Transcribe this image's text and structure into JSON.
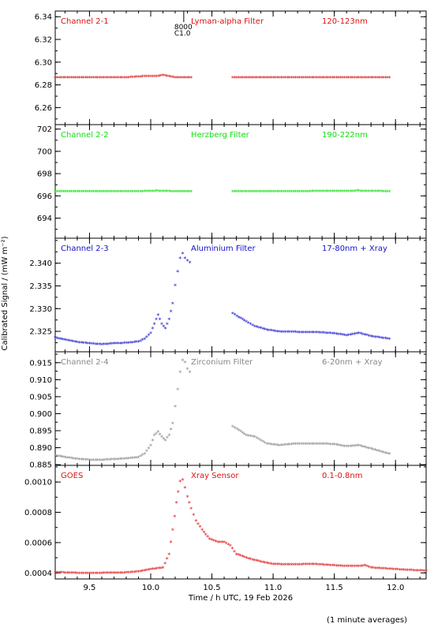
{
  "chart_data": [
    {
      "type": "scatter",
      "channel_label": "Channel 2-1",
      "filter_label": "Lyman-alpha Filter",
      "band_label": "120-123nm",
      "color": "#dd1111",
      "ylim": [
        6.245,
        6.345
      ],
      "yticks": [
        6.26,
        6.28,
        6.3,
        6.32,
        6.34
      ],
      "ytick_labels": [
        "6.26",
        "6.28",
        "6.30",
        "6.32",
        "6.34"
      ],
      "marker_annotation": {
        "x": 10.27,
        "lines": [
          "8000",
          "C1.0"
        ]
      },
      "series": [
        {
          "segments": [
            [
              [
                9.22,
                6.286
              ],
              [
                9.5,
                6.286
              ],
              [
                9.8,
                6.286
              ],
              [
                9.95,
                6.287
              ],
              [
                10.0,
                6.287
              ],
              [
                10.05,
                6.287
              ],
              [
                10.1,
                6.288
              ],
              [
                10.15,
                6.287
              ],
              [
                10.2,
                6.286
              ],
              [
                10.33,
                6.286
              ]
            ],
            [
              [
                10.67,
                6.286
              ],
              [
                11.0,
                6.286
              ],
              [
                11.5,
                6.286
              ],
              [
                11.95,
                6.286
              ]
            ]
          ]
        }
      ]
    },
    {
      "type": "scatter",
      "channel_label": "Channel 2-2",
      "filter_label": "Herzberg Filter",
      "band_label": "190-222nm",
      "color": "#11dd11",
      "ylim": [
        692.2,
        702.4
      ],
      "yticks": [
        694,
        696,
        698,
        700,
        702
      ],
      "ytick_labels": [
        "694",
        "696",
        "698",
        "700",
        "702"
      ],
      "series": [
        {
          "segments": [
            [
              [
                9.22,
                696.35
              ],
              [
                9.6,
                696.35
              ],
              [
                9.9,
                696.35
              ],
              [
                10.05,
                696.4
              ],
              [
                10.2,
                696.35
              ],
              [
                10.33,
                696.35
              ]
            ],
            [
              [
                10.67,
                696.35
              ],
              [
                11.2,
                696.35
              ],
              [
                11.7,
                696.4
              ],
              [
                11.95,
                696.35
              ]
            ]
          ]
        }
      ]
    },
    {
      "type": "scatter",
      "channel_label": "Channel 2-3",
      "filter_label": "Aluminium Filter",
      "band_label": "17-80nm + Xray",
      "color": "#1111cc",
      "ylim": [
        2.3205,
        2.3455
      ],
      "yticks": [
        2.325,
        2.33,
        2.335,
        2.34
      ],
      "ytick_labels": [
        "2.325",
        "2.330",
        "2.335",
        "2.340"
      ],
      "series": [
        {
          "segments": [
            [
              [
                9.22,
                2.3235
              ],
              [
                9.3,
                2.323
              ],
              [
                9.4,
                2.3225
              ],
              [
                9.5,
                2.3222
              ],
              [
                9.6,
                2.322
              ],
              [
                9.7,
                2.3222
              ],
              [
                9.8,
                2.3223
              ],
              [
                9.9,
                2.3226
              ],
              [
                9.95,
                2.3232
              ],
              [
                10.0,
                2.3245
              ],
              [
                10.03,
                2.3265
              ],
              [
                10.06,
                2.3285
              ],
              [
                10.09,
                2.3265
              ],
              [
                10.12,
                2.3255
              ],
              [
                10.15,
                2.3275
              ],
              [
                10.18,
                2.331
              ],
              [
                10.2,
                2.335
              ],
              [
                10.22,
                2.338
              ],
              [
                10.24,
                2.341
              ],
              [
                10.26,
                2.342
              ],
              [
                10.28,
                2.341
              ],
              [
                10.3,
                2.3405
              ],
              [
                10.32,
                2.34
              ]
            ],
            [
              [
                10.67,
                2.3288
              ],
              [
                10.72,
                2.328
              ],
              [
                10.78,
                2.327
              ],
              [
                10.85,
                2.326
              ],
              [
                10.95,
                2.3252
              ],
              [
                11.05,
                2.3248
              ],
              [
                11.2,
                2.3247
              ],
              [
                11.3,
                2.3247
              ],
              [
                11.4,
                2.3246
              ],
              [
                11.5,
                2.3244
              ],
              [
                11.6,
                2.324
              ],
              [
                11.7,
                2.3245
              ],
              [
                11.8,
                2.3238
              ],
              [
                11.95,
                2.3232
              ]
            ]
          ]
        }
      ]
    },
    {
      "type": "scatter",
      "channel_label": "Channel 2-4",
      "filter_label": "Zirconium Filter",
      "band_label": "6-20nm + Xray",
      "color": "#888888",
      "ylim": [
        0.8848,
        0.9182
      ],
      "yticks": [
        0.885,
        0.89,
        0.895,
        0.9,
        0.905,
        0.91,
        0.915
      ],
      "ytick_labels": [
        "0.885",
        "0.890",
        "0.895",
        "0.900",
        "0.905",
        "0.910",
        "0.915"
      ],
      "series": [
        {
          "segments": [
            [
              [
                9.22,
                0.8875
              ],
              [
                9.3,
                0.887
              ],
              [
                9.4,
                0.8865
              ],
              [
                9.5,
                0.8862
              ],
              [
                9.6,
                0.8862
              ],
              [
                9.7,
                0.8864
              ],
              [
                9.8,
                0.8866
              ],
              [
                9.9,
                0.887
              ],
              [
                9.95,
                0.888
              ],
              [
                10.0,
                0.8905
              ],
              [
                10.03,
                0.8935
              ],
              [
                10.06,
                0.8945
              ],
              [
                10.09,
                0.893
              ],
              [
                10.12,
                0.892
              ],
              [
                10.15,
                0.8935
              ],
              [
                10.18,
                0.897
              ],
              [
                10.2,
                0.902
              ],
              [
                10.22,
                0.907
              ],
              [
                10.24,
                0.912
              ],
              [
                10.26,
                0.9155
              ],
              [
                10.28,
                0.915
              ],
              [
                10.3,
                0.913
              ],
              [
                10.32,
                0.912
              ]
            ],
            [
              [
                10.67,
                0.896
              ],
              [
                10.72,
                0.895
              ],
              [
                10.78,
                0.8935
              ],
              [
                10.85,
                0.893
              ],
              [
                10.95,
                0.891
              ],
              [
                11.05,
                0.8905
              ],
              [
                11.2,
                0.891
              ],
              [
                11.3,
                0.891
              ],
              [
                11.4,
                0.891
              ],
              [
                11.5,
                0.8908
              ],
              [
                11.6,
                0.8902
              ],
              [
                11.7,
                0.8905
              ],
              [
                11.8,
                0.8895
              ],
              [
                11.95,
                0.888
              ]
            ]
          ]
        }
      ]
    },
    {
      "type": "scatter",
      "channel_label": "GOES",
      "filter_label": "Xray Sensor",
      "band_label": "0.1-0.8nm",
      "color": "#dd1111",
      "ylim": [
        0.00036,
        0.00111
      ],
      "yticks": [
        0.0004,
        0.0006,
        0.0008,
        0.001
      ],
      "ytick_labels": [
        "0.0004",
        "0.0006",
        "0.0008",
        "0.0010"
      ],
      "xlabel": "Time / h UTC, 19 Feb 2026",
      "xlim": [
        9.22,
        12.25
      ],
      "xticks": [
        9.5,
        10.0,
        10.5,
        11.0,
        11.5,
        12.0
      ],
      "xtick_labels": [
        "9.5",
        "10.0",
        "10.5",
        "11.0",
        "11.5",
        "12.0"
      ],
      "series": [
        {
          "segments": [
            [
              [
                9.22,
                0.0004
              ],
              [
                9.4,
                0.000395
              ],
              [
                9.6,
                0.000395
              ],
              [
                9.8,
                0.000398
              ],
              [
                9.9,
                0.000405
              ],
              [
                10.0,
                0.00042
              ],
              [
                10.05,
                0.000425
              ],
              [
                10.1,
                0.00043
              ],
              [
                10.15,
                0.00052
              ],
              [
                10.18,
                0.00068
              ],
              [
                10.21,
                0.00086
              ],
              [
                10.24,
                0.001
              ],
              [
                10.26,
                0.00101
              ],
              [
                10.28,
                0.00096
              ],
              [
                10.3,
                0.0009
              ],
              [
                10.33,
                0.00082
              ],
              [
                10.37,
                0.00074
              ],
              [
                10.42,
                0.00068
              ],
              [
                10.48,
                0.00062
              ],
              [
                10.55,
                0.0006
              ],
              [
                10.6,
                0.0006
              ],
              [
                10.65,
                0.000575
              ],
              [
                10.7,
                0.00052
              ],
              [
                10.8,
                0.00049
              ],
              [
                10.9,
                0.00047
              ],
              [
                11.0,
                0.000455
              ],
              [
                11.1,
                0.00045
              ],
              [
                11.2,
                0.00045
              ],
              [
                11.3,
                0.000455
              ],
              [
                11.4,
                0.00045
              ],
              [
                11.5,
                0.000445
              ],
              [
                11.6,
                0.00044
              ],
              [
                11.7,
                0.00044
              ],
              [
                11.75,
                0.000445
              ],
              [
                11.8,
                0.00043
              ],
              [
                11.9,
                0.000425
              ],
              [
                12.0,
                0.00042
              ],
              [
                12.1,
                0.000415
              ],
              [
                12.25,
                0.00041
              ]
            ]
          ]
        }
      ]
    }
  ],
  "shared_ylabel": "Calibrated Signal / (mW m⁻²)",
  "footer_note": "(1 minute averages)"
}
